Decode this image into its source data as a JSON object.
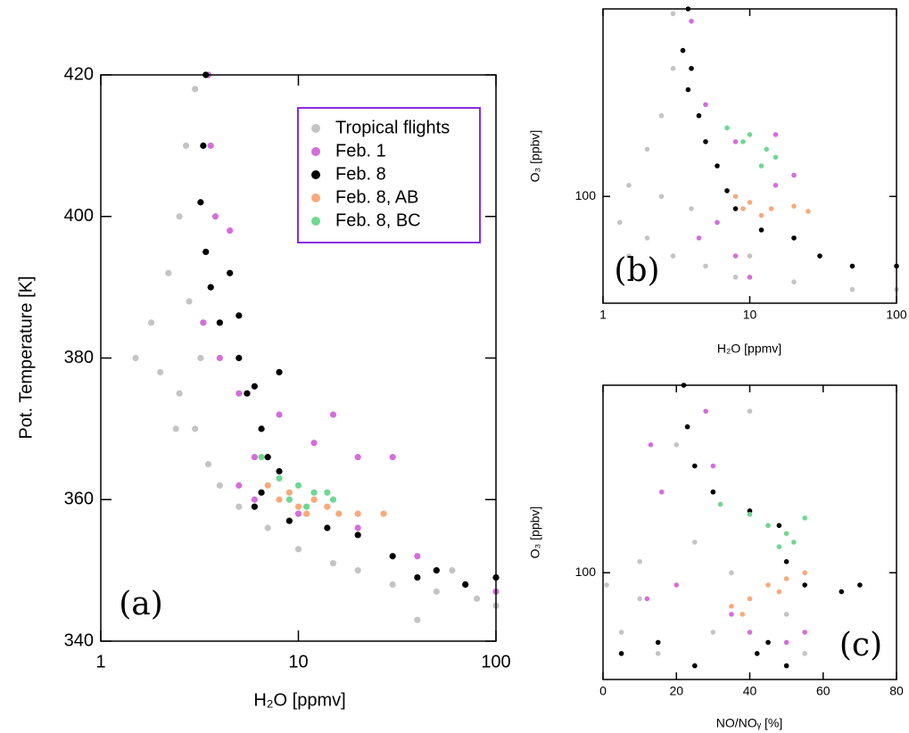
{
  "chart_data": [
    {
      "type": "scatter",
      "panel_label": "(a)",
      "xlabel": "H₂O  [ppmv]",
      "ylabel": "Pot. Temperature [K]",
      "xscale": "log",
      "xlim": [
        1,
        100
      ],
      "xticks": [
        1,
        10,
        100
      ],
      "ylim": [
        340,
        420
      ],
      "yticks": [
        340,
        360,
        380,
        400,
        420
      ],
      "legend": "upper right",
      "legend_border": "#8a2be2",
      "series": [
        {
          "name": "Tropical flights",
          "color": "#c4c4c4",
          "x": [
            3,
            2.7,
            2.5,
            2.2,
            1.8,
            1.5,
            2,
            2.5,
            3,
            2.4,
            3.5,
            4,
            5,
            7,
            10,
            15,
            20,
            30,
            50,
            80,
            100,
            2.8,
            3.2,
            60,
            40
          ],
          "y": [
            418,
            410,
            400,
            392,
            385,
            380,
            378,
            375,
            370,
            370,
            365,
            362,
            359,
            356,
            353,
            351,
            350,
            348,
            347,
            346,
            345,
            388,
            380,
            350,
            343
          ]
        },
        {
          "name": "Feb. 1",
          "color": "#d56ddb",
          "x": [
            3.5,
            3.6,
            3.8,
            3.3,
            4,
            5,
            8,
            12,
            20,
            30,
            6,
            5,
            6,
            10,
            20,
            40,
            70,
            100,
            4.5,
            15
          ],
          "y": [
            420,
            410,
            400,
            385,
            380,
            375,
            372,
            368,
            366,
            366,
            366,
            362,
            360,
            358,
            356,
            352,
            348,
            347,
            398,
            372
          ]
        },
        {
          "name": "Feb. 8",
          "color": "#000000",
          "x": [
            3.4,
            3.3,
            3.2,
            3.4,
            3.6,
            4.5,
            4,
            5,
            5.5,
            6.5,
            7,
            8,
            6.5,
            6,
            9,
            14,
            20,
            30,
            50,
            100,
            40,
            70,
            5,
            8,
            6
          ],
          "y": [
            420,
            410,
            402,
            395,
            390,
            392,
            385,
            380,
            375,
            370,
            366,
            364,
            361,
            359,
            357,
            356,
            355,
            352,
            350,
            349,
            349,
            348,
            386,
            378,
            376
          ]
        },
        {
          "name": "Feb. 8, AB",
          "color": "#f9a97a",
          "x": [
            7,
            8,
            10,
            14,
            20,
            27,
            9,
            12,
            16,
            11
          ],
          "y": [
            362,
            360,
            359,
            359,
            358,
            358,
            361,
            360,
            358,
            358
          ]
        },
        {
          "name": "Feb. 8, BC",
          "color": "#6fd890",
          "x": [
            6.5,
            8,
            10,
            12,
            14,
            9,
            11,
            15
          ],
          "y": [
            366,
            363,
            362,
            361,
            361,
            360,
            359,
            360
          ]
        }
      ]
    },
    {
      "type": "scatter",
      "panel_label": "(b)",
      "xlabel": "H₂O [ppmv]",
      "ylabel": "O₃ [ppbv]",
      "xscale": "log",
      "yscale": "log",
      "xlim": [
        1,
        100
      ],
      "xticks": [
        1,
        10,
        100
      ],
      "ylim": [
        40,
        500
      ],
      "yticks": [
        100
      ],
      "series": [
        {
          "color": "#c4c4c4",
          "x": [
            3,
            3,
            2.5,
            2,
            1.5,
            1.3,
            2,
            3,
            5,
            8,
            20,
            50,
            100,
            4,
            6,
            10,
            2.5,
            1.5
          ],
          "y": [
            480,
            300,
            200,
            150,
            110,
            80,
            70,
            60,
            55,
            50,
            48,
            45,
            45,
            90,
            80,
            60,
            100,
            60
          ]
        },
        {
          "color": "#d56ddb",
          "x": [
            4,
            5,
            8,
            15,
            20,
            6,
            8,
            10,
            4.5,
            15
          ],
          "y": [
            450,
            220,
            160,
            170,
            120,
            80,
            60,
            50,
            70,
            110
          ]
        },
        {
          "color": "#000000",
          "x": [
            3.8,
            3.5,
            3.8,
            4.5,
            5,
            6,
            7,
            8,
            12,
            20,
            30,
            50,
            100,
            4
          ],
          "y": [
            500,
            350,
            250,
            200,
            160,
            130,
            105,
            90,
            75,
            70,
            60,
            55,
            55,
            300
          ]
        },
        {
          "color": "#f9a97a",
          "x": [
            8,
            10,
            14,
            20,
            25,
            12,
            9
          ],
          "y": [
            100,
            95,
            90,
            92,
            88,
            85,
            90
          ]
        },
        {
          "color": "#6fd890",
          "x": [
            7,
            10,
            13,
            15,
            12,
            9
          ],
          "y": [
            180,
            170,
            150,
            140,
            130,
            160
          ]
        }
      ]
    },
    {
      "type": "scatter",
      "panel_label": "(c)",
      "xlabel": "NO/NOᵧ [%]",
      "ylabel": "O₃ [ppbv]",
      "xscale": "linear",
      "yscale": "log",
      "xlim": [
        0,
        80
      ],
      "xticks": [
        0,
        20,
        40,
        60,
        80
      ],
      "ylim": [
        40,
        500
      ],
      "yticks": [
        100
      ],
      "series": [
        {
          "color": "#c4c4c4",
          "x": [
            10,
            5,
            15,
            25,
            30,
            20,
            22,
            40,
            45,
            35,
            10,
            50,
            1,
            30,
            55
          ],
          "y": [
            80,
            60,
            50,
            130,
            200,
            300,
            500,
            400,
            150,
            100,
            110,
            70,
            90,
            60,
            50
          ]
        },
        {
          "color": "#d56ddb",
          "x": [
            13,
            16,
            28,
            30,
            12,
            40,
            50,
            55,
            35,
            20
          ],
          "y": [
            300,
            200,
            400,
            250,
            80,
            60,
            55,
            60,
            70,
            90
          ]
        },
        {
          "color": "#000000",
          "x": [
            22,
            23,
            25,
            30,
            40,
            48,
            50,
            55,
            65,
            70,
            45,
            42,
            5,
            15,
            25,
            50
          ],
          "y": [
            500,
            350,
            250,
            200,
            170,
            150,
            110,
            90,
            85,
            90,
            55,
            50,
            50,
            55,
            45,
            45
          ]
        },
        {
          "color": "#f9a97a",
          "x": [
            35,
            40,
            45,
            50,
            55,
            48,
            38
          ],
          "y": [
            75,
            80,
            90,
            95,
            100,
            85,
            70
          ]
        },
        {
          "color": "#6fd890",
          "x": [
            32,
            40,
            45,
            50,
            52,
            55,
            48
          ],
          "y": [
            180,
            165,
            150,
            140,
            130,
            160,
            125
          ]
        }
      ]
    }
  ]
}
